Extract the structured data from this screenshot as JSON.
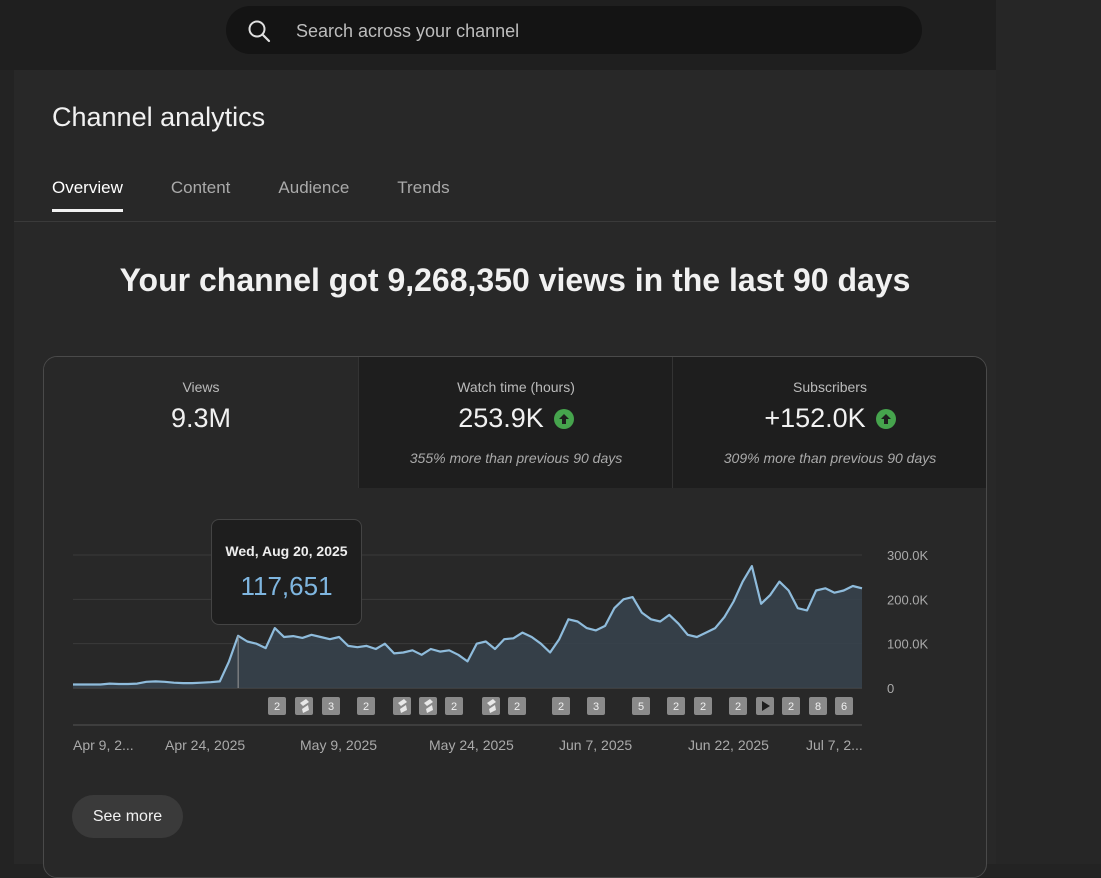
{
  "search": {
    "placeholder": "Search across your channel"
  },
  "page_title": "Channel analytics",
  "tabs": [
    {
      "label": "Overview",
      "active": true
    },
    {
      "label": "Content",
      "active": false
    },
    {
      "label": "Audience",
      "active": false
    },
    {
      "label": "Trends",
      "active": false
    }
  ],
  "headline": "Your channel got 9,268,350 views in the last 90 days",
  "metrics": [
    {
      "label": "Views",
      "value": "9.3M",
      "note": ""
    },
    {
      "label": "Watch time (hours)",
      "value": "253.9K",
      "note": "355% more than previous 90 days",
      "trend": "up"
    },
    {
      "label": "Subscribers",
      "value": "+152.0K",
      "note": "309% more than previous 90 days",
      "trend": "up"
    }
  ],
  "tooltip": {
    "date": "Wed, Aug 20, 2025",
    "value": "117,651"
  },
  "see_more_label": "See more",
  "colors": {
    "accent_line": "#8fbcdc",
    "trend_up": "#46a44d"
  },
  "chart_data": {
    "type": "area",
    "x_tick_labels": [
      "Apr 9, 2...",
      "Apr 24, 2025",
      "May 9, 2025",
      "May 24, 2025",
      "Jun 7, 2025",
      "Jun 22, 2025",
      "Jul 7, 2..."
    ],
    "y_tick_labels": [
      "300.0K",
      "200.0K",
      "100.0K",
      "0"
    ],
    "ylim": [
      0,
      300000
    ],
    "values": [
      8000,
      8000,
      8000,
      8000,
      10000,
      9000,
      9000,
      10000,
      14000,
      15000,
      14000,
      12000,
      11000,
      11000,
      12000,
      13000,
      15000,
      60000,
      117651,
      105000,
      100000,
      90000,
      135000,
      115000,
      117000,
      113000,
      120000,
      115000,
      110000,
      115000,
      95000,
      92000,
      95000,
      88000,
      100000,
      78000,
      80000,
      85000,
      75000,
      88000,
      82000,
      85000,
      75000,
      60000,
      100000,
      105000,
      88000,
      110000,
      112000,
      125000,
      115000,
      100000,
      80000,
      110000,
      155000,
      150000,
      135000,
      130000,
      140000,
      180000,
      200000,
      205000,
      170000,
      155000,
      150000,
      165000,
      145000,
      120000,
      115000,
      125000,
      135000,
      160000,
      195000,
      240000,
      275000,
      190000,
      210000,
      240000,
      220000,
      180000,
      175000,
      220000,
      225000,
      215000,
      220000,
      230000,
      225000
    ],
    "markers": [
      "2",
      "shorts",
      "3",
      "2",
      "shorts",
      "shorts",
      "2",
      "shorts",
      "2",
      "2",
      "3",
      "5",
      "2",
      "2",
      "2",
      "video",
      "2",
      "8",
      "6"
    ]
  }
}
